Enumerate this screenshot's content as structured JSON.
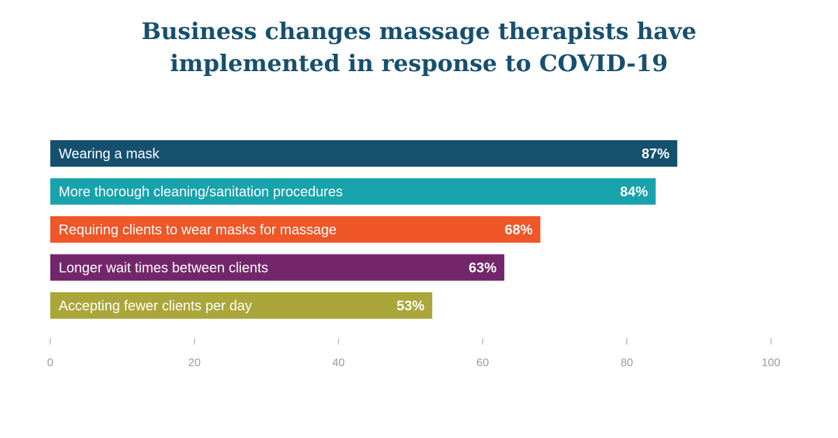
{
  "chart_data": {
    "type": "bar",
    "orientation": "horizontal",
    "title": [
      "Business changes massage therapists have",
      "implemented in response to COVID-19"
    ],
    "categories": [
      "Wearing a mask",
      "More thorough cleaning/sanitation procedures",
      "Requiring clients to wear masks for massage",
      "Longer wait times between clients",
      "Accepting fewer clients per day"
    ],
    "values": [
      87,
      84,
      68,
      63,
      53
    ],
    "value_labels": [
      "87%",
      "84%",
      "68%",
      "63%",
      "53%"
    ],
    "colors": [
      "#15506f",
      "#18a2ac",
      "#ef5628",
      "#74266b",
      "#aaa63a"
    ],
    "xlim": [
      0,
      100
    ],
    "xticks": [
      0,
      20,
      40,
      60,
      80,
      100
    ],
    "xtick_labels": [
      "0",
      "20",
      "40",
      "60",
      "80",
      "100"
    ],
    "grid": false,
    "legend": "none"
  }
}
